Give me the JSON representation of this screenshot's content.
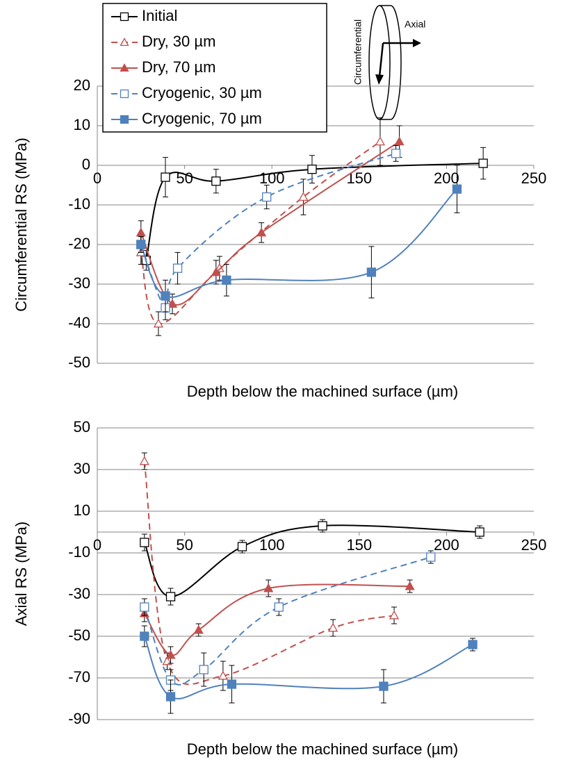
{
  "chart_data": [
    {
      "type": "line",
      "xlabel": "Depth below the machined surface (µm)",
      "ylabel": "Circumferential RS (MPa)",
      "xlim": [
        0,
        250
      ],
      "xticks": [
        0,
        50,
        100,
        150,
        200,
        250
      ],
      "ylim": [
        -50,
        20
      ],
      "yticks": [
        -50,
        -40,
        -30,
        -20,
        -10,
        0,
        10,
        20
      ],
      "grid": true,
      "legend": "top-left",
      "annotations": [
        "Circumferential",
        "Axial"
      ],
      "series": [
        {
          "name": "Initial",
          "color": "#000000",
          "marker": "square",
          "filled": false,
          "dashed": false,
          "x": [
            28,
            39,
            68,
            123,
            221
          ],
          "values": [
            -24,
            -3,
            -4,
            -1,
            0.5
          ],
          "errors": [
            2.5,
            5,
            3,
            3.5,
            4
          ]
        },
        {
          "name": "Dry, 30 µm",
          "color": "#c0504d",
          "marker": "triangle",
          "filled": false,
          "dashed": true,
          "x": [
            25,
            35,
            70,
            118,
            162
          ],
          "values": [
            -22,
            -40,
            -26,
            -8,
            6
          ],
          "errors": [
            3,
            3,
            3,
            4.5,
            6
          ]
        },
        {
          "name": "Dry, 70 µm",
          "color": "#c0504d",
          "marker": "triangle",
          "filled": true,
          "dashed": false,
          "x": [
            25,
            43,
            68,
            94,
            173
          ],
          "values": [
            -17,
            -35,
            -27,
            -17,
            6
          ],
          "errors": [
            3,
            2.5,
            3,
            2.5,
            4
          ]
        },
        {
          "name": "Cryogenic, 30 µm",
          "color": "#4f81bd",
          "marker": "square",
          "filled": false,
          "dashed": true,
          "x": [
            25,
            39,
            46,
            97,
            171
          ],
          "values": [
            -20,
            -36,
            -26,
            -8,
            3
          ],
          "errors": [
            2,
            3,
            4,
            3,
            2
          ]
        },
        {
          "name": "Cryogenic, 70 µm",
          "color": "#4f81bd",
          "marker": "square",
          "filled": true,
          "dashed": false,
          "x": [
            25,
            39,
            74,
            157,
            206
          ],
          "values": [
            -20,
            -33,
            -29,
            -27,
            -6
          ],
          "errors": [
            2,
            4,
            4,
            6.5,
            6
          ]
        }
      ]
    },
    {
      "type": "line",
      "xlabel": "Depth below the machined surface (µm)",
      "ylabel": "Axial RS (MPa)",
      "xlim": [
        0,
        250
      ],
      "xticks": [
        0,
        50,
        100,
        150,
        200,
        250
      ],
      "ylim": [
        -90,
        50
      ],
      "yticks": [
        -90,
        -70,
        -50,
        -30,
        -10,
        10,
        30,
        50
      ],
      "grid": true,
      "series": [
        {
          "color": "#000000",
          "marker": "square",
          "filled": false,
          "dashed": false,
          "x": [
            27,
            42,
            83,
            129,
            219
          ],
          "values": [
            -5,
            -31,
            -7,
            3,
            0
          ],
          "errors": [
            4,
            4,
            3,
            3,
            3
          ]
        },
        {
          "color": "#c0504d",
          "marker": "triangle",
          "filled": false,
          "dashed": true,
          "x": [
            27,
            40,
            72,
            135,
            170
          ],
          "values": [
            34,
            -62,
            -69,
            -46,
            -40
          ],
          "errors": [
            4,
            4,
            7,
            4,
            4
          ]
        },
        {
          "color": "#c0504d",
          "marker": "triangle",
          "filled": true,
          "dashed": false,
          "x": [
            27,
            42,
            58,
            98,
            179
          ],
          "values": [
            -39,
            -59,
            -47,
            -27,
            -26
          ],
          "errors": [
            4,
            4,
            3,
            4,
            3
          ]
        },
        {
          "color": "#4f81bd",
          "marker": "square",
          "filled": false,
          "dashed": true,
          "x": [
            27,
            42,
            61,
            104,
            191
          ],
          "values": [
            -36,
            -71,
            -66,
            -36,
            -12
          ],
          "errors": [
            4,
            5,
            8,
            4,
            3
          ]
        },
        {
          "color": "#4f81bd",
          "marker": "square",
          "filled": true,
          "dashed": false,
          "x": [
            27,
            42,
            77,
            164,
            215
          ],
          "values": [
            -50,
            -79,
            -73,
            -74,
            -54
          ],
          "errors": [
            5,
            8,
            9,
            8,
            3
          ]
        }
      ]
    }
  ]
}
